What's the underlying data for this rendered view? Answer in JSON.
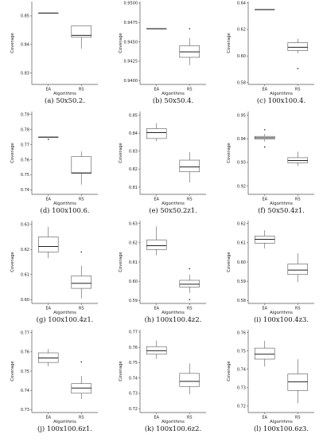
{
  "chart_data": [
    {
      "type": "box",
      "caption": "(a) 50x50.2.",
      "ylabel": "Coverage",
      "xlabel": "Algorithms",
      "categories": [
        "EA",
        "RS"
      ],
      "ylim": [
        0.826,
        0.855
      ],
      "yticks": [
        0.83,
        0.84,
        0.85
      ],
      "ytick_labels": [
        "0.83",
        "0.84",
        "0.85"
      ],
      "boxes": [
        {
          "name": "EA",
          "min": 0.851,
          "q1": 0.851,
          "median": 0.851,
          "q3": 0.851,
          "max": 0.851,
          "outliers": []
        },
        {
          "name": "RS",
          "min": 0.8385,
          "q1": 0.8425,
          "median": 0.8432,
          "q3": 0.8465,
          "max": 0.8465,
          "outliers": []
        }
      ]
    },
    {
      "type": "box",
      "caption": "(b) 50x50.4.",
      "ylabel": "Coverage",
      "xlabel": "Algorithms",
      "categories": [
        "EA",
        "RS"
      ],
      "ylim": [
        0.9395,
        0.9502
      ],
      "yticks": [
        0.94,
        0.9425,
        0.945,
        0.9475,
        0.95
      ],
      "ytick_labels": [
        "0.9400",
        "0.9425",
        "0.9450",
        "0.9475",
        "0.9500"
      ],
      "boxes": [
        {
          "name": "EA",
          "min": 0.9467,
          "q1": 0.9467,
          "median": 0.9467,
          "q3": 0.9467,
          "max": 0.9467,
          "outliers": []
        },
        {
          "name": "RS",
          "min": 0.942,
          "q1": 0.943,
          "median": 0.9437,
          "q3": 0.9445,
          "max": 0.9455,
          "outliers": [
            0.9467
          ]
        }
      ]
    },
    {
      "type": "box",
      "caption": "(c) 100x100.4.",
      "ylabel": "Coverage",
      "xlabel": "Algorithms",
      "categories": [
        "EA",
        "RS"
      ],
      "ylim": [
        0.5785,
        0.641
      ],
      "yticks": [
        0.58,
        0.6,
        0.62,
        0.64
      ],
      "ytick_labels": [
        "0.58",
        "0.60",
        "0.62",
        "0.64"
      ],
      "boxes": [
        {
          "name": "EA",
          "min": 0.635,
          "q1": 0.635,
          "median": 0.635,
          "q3": 0.635,
          "max": 0.635,
          "outliers": []
        },
        {
          "name": "RS",
          "min": 0.602,
          "q1": 0.604,
          "median": 0.6065,
          "q3": 0.61,
          "max": 0.613,
          "outliers": [
            0.5905
          ]
        }
      ]
    },
    {
      "type": "box",
      "caption": "(d) 100x100.6.",
      "ylabel": "Coverage",
      "xlabel": "Algorithms",
      "categories": [
        "EA",
        "RS"
      ],
      "ylim": [
        0.737,
        0.792
      ],
      "yticks": [
        0.74,
        0.75,
        0.76,
        0.77,
        0.78,
        0.79
      ],
      "ytick_labels": [
        "0.74",
        "0.75",
        "0.76",
        "0.77",
        "0.78",
        "0.79"
      ],
      "boxes": [
        {
          "name": "EA",
          "min": 0.775,
          "q1": 0.775,
          "median": 0.775,
          "q3": 0.775,
          "max": 0.775,
          "outliers": [
            0.7735
          ]
        },
        {
          "name": "RS",
          "min": 0.7435,
          "q1": 0.751,
          "median": 0.7512,
          "q3": 0.762,
          "max": 0.7655,
          "outliers": []
        }
      ]
    },
    {
      "type": "box",
      "caption": "(e) 50x50.2z1.",
      "ylabel": "Coverage",
      "xlabel": "Algorithms",
      "categories": [
        "EA",
        "RS"
      ],
      "ylim": [
        0.806,
        0.852
      ],
      "yticks": [
        0.81,
        0.82,
        0.83,
        0.84,
        0.85
      ],
      "ytick_labels": [
        "0.81",
        "0.82",
        "0.83",
        "0.84",
        "0.85"
      ],
      "boxes": [
        {
          "name": "EA",
          "min": 0.8355,
          "q1": 0.837,
          "median": 0.8403,
          "q3": 0.8425,
          "max": 0.8455,
          "outliers": []
        },
        {
          "name": "RS",
          "min": 0.8125,
          "q1": 0.8185,
          "median": 0.8212,
          "q3": 0.825,
          "max": 0.8295,
          "outliers": []
        }
      ]
    },
    {
      "type": "box",
      "caption": "(f) 50x50.4z1.",
      "ylabel": "Coverage",
      "xlabel": "Algorithms",
      "categories": [
        "EA",
        "RS"
      ],
      "ylim": [
        0.9165,
        0.9515
      ],
      "yticks": [
        0.92,
        0.93,
        0.94,
        0.95
      ],
      "ytick_labels": [
        "0.92",
        "0.93",
        "0.94",
        "0.95"
      ],
      "boxes": [
        {
          "name": "EA",
          "min": 0.9388,
          "q1": 0.9398,
          "median": 0.9404,
          "q3": 0.941,
          "max": 0.942,
          "outliers": [
            0.9438,
            0.9365
          ]
        },
        {
          "name": "RS",
          "min": 0.9285,
          "q1": 0.9298,
          "median": 0.9308,
          "q3": 0.932,
          "max": 0.9345,
          "outliers": []
        }
      ]
    },
    {
      "type": "box",
      "caption": "(g) 100x100.4z1.",
      "ylabel": "Coverage",
      "xlabel": "Algorithms",
      "categories": [
        "EA",
        "RS"
      ],
      "ylim": [
        0.5985,
        0.6315
      ],
      "yticks": [
        0.6,
        0.61,
        0.62,
        0.63
      ],
      "ytick_labels": [
        "0.60",
        "0.61",
        "0.62",
        "0.63"
      ],
      "boxes": [
        {
          "name": "EA",
          "min": 0.6165,
          "q1": 0.619,
          "median": 0.6212,
          "q3": 0.625,
          "max": 0.629,
          "outliers": []
        },
        {
          "name": "RS",
          "min": 0.6005,
          "q1": 0.6045,
          "median": 0.6065,
          "q3": 0.6095,
          "max": 0.6135,
          "outliers": [
            0.619
          ]
        }
      ]
    },
    {
      "type": "box",
      "caption": "(h) 100x100.4z2.",
      "ylabel": "Coverage",
      "xlabel": "Algorithms",
      "categories": [
        "EA",
        "RS"
      ],
      "ylim": [
        0.5885,
        0.6315
      ],
      "yticks": [
        0.59,
        0.6,
        0.61,
        0.62,
        0.63
      ],
      "ytick_labels": [
        "0.59",
        "0.60",
        "0.61",
        "0.62",
        "0.63"
      ],
      "boxes": [
        {
          "name": "EA",
          "min": 0.6135,
          "q1": 0.6165,
          "median": 0.6185,
          "q3": 0.6215,
          "max": 0.6285,
          "outliers": []
        },
        {
          "name": "RS",
          "min": 0.594,
          "q1": 0.597,
          "median": 0.5985,
          "q3": 0.6005,
          "max": 0.6035,
          "outliers": [
            0.6065,
            0.5905
          ]
        }
      ]
    },
    {
      "type": "box",
      "caption": "(i) 100x100.4z3.",
      "ylabel": "Coverage",
      "xlabel": "Algorithms",
      "categories": [
        "EA",
        "RS"
      ],
      "ylim": [
        0.5785,
        0.6215
      ],
      "yticks": [
        0.58,
        0.59,
        0.6,
        0.61,
        0.62
      ],
      "ytick_labels": [
        "0.58",
        "0.59",
        "0.60",
        "0.61",
        "0.62"
      ],
      "boxes": [
        {
          "name": "EA",
          "min": 0.607,
          "q1": 0.6098,
          "median": 0.6118,
          "q3": 0.6135,
          "max": 0.6165,
          "outliers": []
        },
        {
          "name": "RS",
          "min": 0.5895,
          "q1": 0.5935,
          "median": 0.5958,
          "q3": 0.599,
          "max": 0.6045,
          "outliers": []
        }
      ]
    },
    {
      "type": "box",
      "caption": "(j) 100x100.6z1.",
      "ylabel": "Coverage",
      "xlabel": "Algorithms",
      "categories": [
        "EA",
        "RS"
      ],
      "ylim": [
        0.7285,
        0.7715
      ],
      "yticks": [
        0.73,
        0.74,
        0.75,
        0.76,
        0.77
      ],
      "ytick_labels": [
        "0.73",
        "0.74",
        "0.75",
        "0.76",
        "0.77"
      ],
      "boxes": [
        {
          "name": "EA",
          "min": 0.7525,
          "q1": 0.7545,
          "median": 0.7568,
          "q3": 0.7595,
          "max": 0.7615,
          "outliers": []
        },
        {
          "name": "RS",
          "min": 0.7355,
          "q1": 0.7385,
          "median": 0.7412,
          "q3": 0.7435,
          "max": 0.7475,
          "outliers": [
            0.7548
          ]
        }
      ]
    },
    {
      "type": "box",
      "caption": "(k) 100x100.6z2.",
      "ylabel": "Coverage",
      "xlabel": "Algorithms",
      "categories": [
        "EA",
        "RS"
      ],
      "ylim": [
        0.7175,
        0.7715
      ],
      "yticks": [
        0.72,
        0.73,
        0.74,
        0.75,
        0.76,
        0.77
      ],
      "ytick_labels": [
        "0.72",
        "0.73",
        "0.74",
        "0.75",
        "0.76",
        "0.77"
      ],
      "boxes": [
        {
          "name": "EA",
          "min": 0.7525,
          "q1": 0.7555,
          "median": 0.7578,
          "q3": 0.7605,
          "max": 0.7645,
          "outliers": []
        },
        {
          "name": "RS",
          "min": 0.7295,
          "q1": 0.7345,
          "median": 0.7378,
          "q3": 0.743,
          "max": 0.7495,
          "outliers": []
        }
      ]
    },
    {
      "type": "box",
      "caption": "(l) 100x100.6z3.",
      "ylabel": "Coverage",
      "xlabel": "Algorithms",
      "categories": [
        "EA",
        "RS"
      ],
      "ylim": [
        0.7165,
        0.7615
      ],
      "yticks": [
        0.72,
        0.73,
        0.74,
        0.75,
        0.76
      ],
      "ytick_labels": [
        "0.72",
        "0.73",
        "0.74",
        "0.75",
        "0.76"
      ],
      "boxes": [
        {
          "name": "EA",
          "min": 0.7415,
          "q1": 0.7455,
          "median": 0.7482,
          "q3": 0.7515,
          "max": 0.7555,
          "outliers": []
        },
        {
          "name": "RS",
          "min": 0.7215,
          "q1": 0.7285,
          "median": 0.7332,
          "q3": 0.7375,
          "max": 0.7455,
          "outliers": []
        }
      ]
    }
  ]
}
